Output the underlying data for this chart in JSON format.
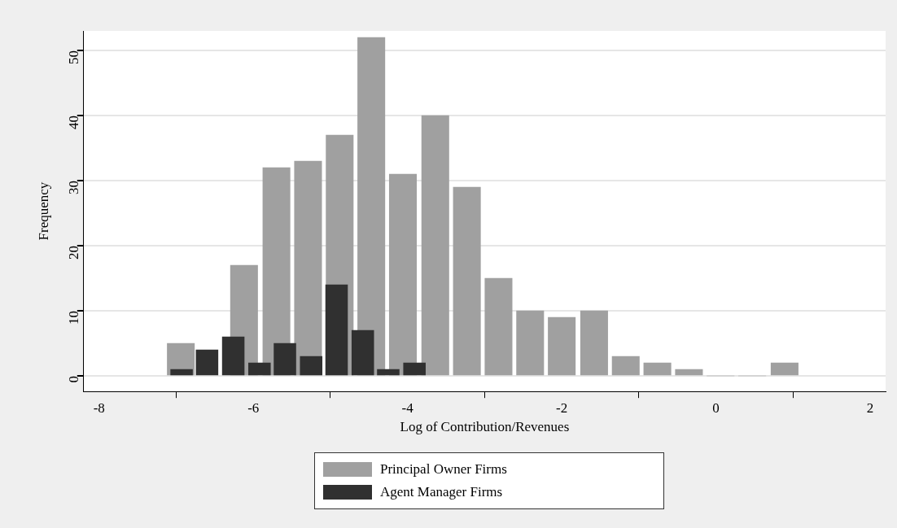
{
  "chart_data": {
    "type": "bar",
    "xlabel": "Log of Contribution/Revenues",
    "ylabel": "Frequency",
    "xlim": [
      -8.2,
      2.2
    ],
    "xticks": [
      -8,
      -6,
      -4,
      -2,
      0,
      2
    ],
    "ylim": [
      -2.4,
      53
    ],
    "yticks": [
      0,
      10,
      20,
      30,
      40,
      50
    ],
    "grid": "y",
    "legend": "bottom",
    "series": [
      {
        "name": "Principal Owner Firms",
        "color": "#a0a0a0",
        "x": [
          -6.94,
          -6.53,
          -6.12,
          -5.7,
          -5.29,
          -4.88,
          -4.47,
          -4.06,
          -3.64,
          -3.23,
          -2.82,
          -2.41,
          -2,
          -1.58,
          -1.17,
          -0.76,
          -0.35,
          0.06,
          0.47,
          0.89
        ],
        "values": [
          5,
          null,
          17,
          32,
          33,
          37,
          52,
          31,
          40,
          29,
          15,
          10,
          9,
          10,
          3,
          2,
          1,
          0,
          0,
          2
        ]
      },
      {
        "name": "Agent Manager Firms",
        "color": "#303030",
        "x": [
          -6.93,
          -6.6,
          -6.26,
          -5.92,
          -5.59,
          -5.25,
          -4.92,
          -4.58,
          -4.25,
          -3.91
        ],
        "values": [
          1,
          4,
          6,
          2,
          5,
          3,
          14,
          7,
          1,
          2
        ]
      }
    ]
  }
}
